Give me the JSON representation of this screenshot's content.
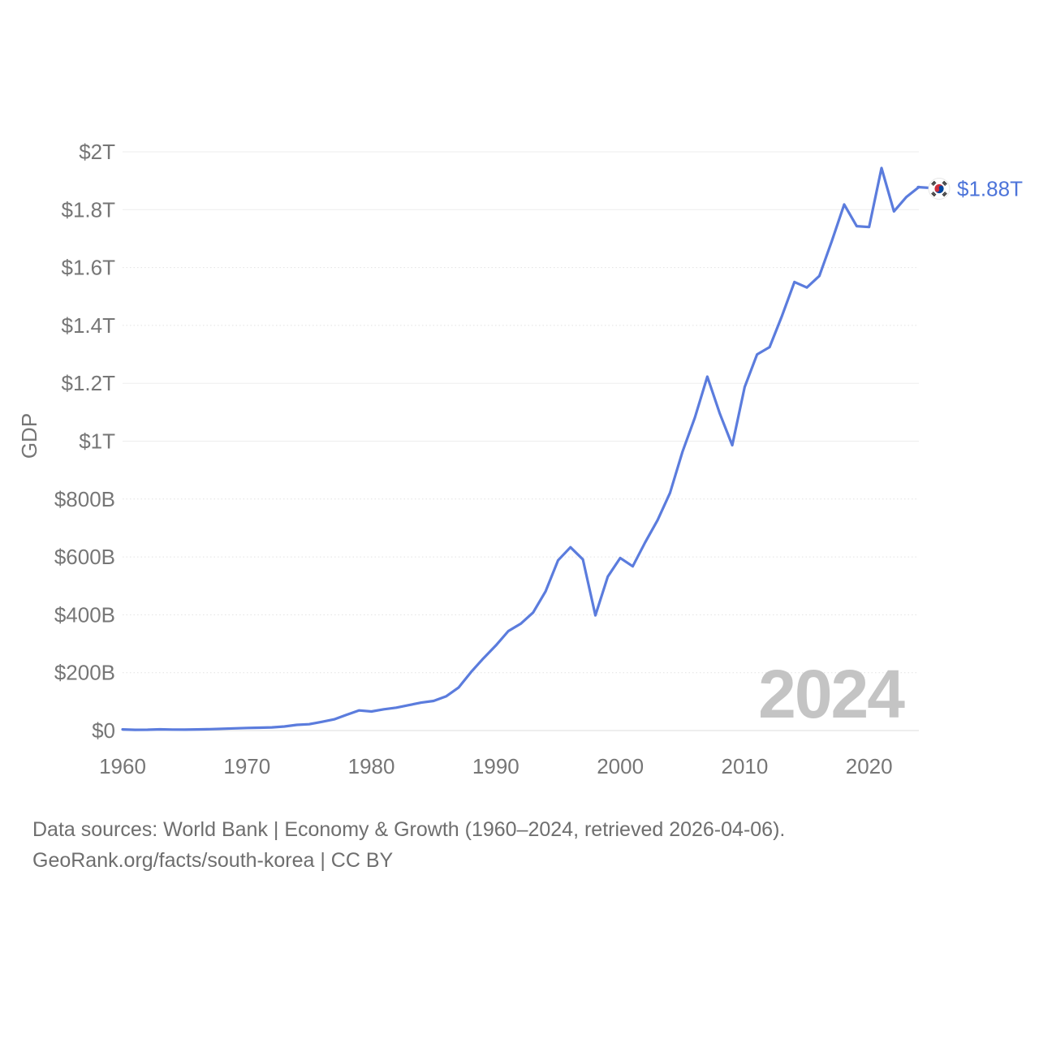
{
  "chart_data": {
    "type": "line",
    "title": "",
    "xlabel": "",
    "ylabel": "GDP",
    "watermark": "2024",
    "end_annotation": "$1.88T",
    "line_color": "#5b7cdd",
    "end_label_color": "#4d74d9",
    "grid": "horizontal",
    "legend": "none",
    "xlim": [
      1960,
      2024
    ],
    "ylim_billions_usd": [
      0,
      2000
    ],
    "x_ticks": [
      1960,
      1970,
      1980,
      1990,
      2000,
      2010,
      2020
    ],
    "y_ticks": [
      {
        "label": "$0",
        "value": 0,
        "grid": "solid"
      },
      {
        "label": "$200B",
        "value": 200,
        "grid": "dotted"
      },
      {
        "label": "$400B",
        "value": 400,
        "grid": "dotted"
      },
      {
        "label": "$600B",
        "value": 600,
        "grid": "dotted"
      },
      {
        "label": "$800B",
        "value": 800,
        "grid": "dotted"
      },
      {
        "label": "$1T",
        "value": 1000,
        "grid": "solid"
      },
      {
        "label": "$1.2T",
        "value": 1200,
        "grid": "solid"
      },
      {
        "label": "$1.4T",
        "value": 1400,
        "grid": "dotted"
      },
      {
        "label": "$1.6T",
        "value": 1600,
        "grid": "dotted"
      },
      {
        "label": "$1.8T",
        "value": 1800,
        "grid": "solid"
      },
      {
        "label": "$2T",
        "value": 2000,
        "grid": "solid"
      }
    ],
    "x": [
      1960,
      1961,
      1962,
      1963,
      1964,
      1965,
      1966,
      1967,
      1968,
      1969,
      1970,
      1971,
      1972,
      1973,
      1974,
      1975,
      1976,
      1977,
      1978,
      1979,
      1980,
      1981,
      1982,
      1983,
      1984,
      1985,
      1986,
      1987,
      1988,
      1989,
      1990,
      1991,
      1992,
      1993,
      1994,
      1995,
      1996,
      1997,
      1998,
      1999,
      2000,
      2001,
      2002,
      2003,
      2004,
      2005,
      2006,
      2007,
      2008,
      2009,
      2010,
      2011,
      2012,
      2013,
      2014,
      2015,
      2016,
      2017,
      2018,
      2019,
      2020,
      2021,
      2022,
      2023,
      2024
    ],
    "values_billions_usd": [
      4.0,
      2.4,
      2.9,
      4.1,
      3.5,
      3.2,
      3.8,
      4.9,
      6.3,
      7.6,
      9.0,
      9.9,
      10.9,
      14.0,
      19.7,
      22.0,
      30.1,
      38.8,
      54.3,
      69.6,
      66.0,
      73.6,
      79.1,
      87.8,
      96.6,
      102.3,
      118.0,
      148.5,
      201.6,
      249.4,
      293.7,
      343.6,
      369.2,
      407.8,
      481.3,
      588.1,
      633.3,
      591.4,
      398.0,
      532.0,
      596.3,
      567.6,
      650.1,
      727.0,
      821.1,
      963.4,
      1082,
      1223,
      1095,
      986,
      1187,
      1300,
      1325,
      1433,
      1550,
      1531,
      1571,
      1691,
      1818,
      1743,
      1740,
      1944,
      1794,
      1844,
      1878
    ]
  },
  "end_marker": {
    "flag": "south-korea-flag",
    "flag_red": "#cd2e3a",
    "flag_blue": "#0047a0"
  },
  "footer": {
    "line1": "Data sources: World Bank | Economy & Growth (1960–2024, retrieved 2026-04-06).",
    "line2": "GeoRank.org/facts/south-korea | CC BY"
  }
}
